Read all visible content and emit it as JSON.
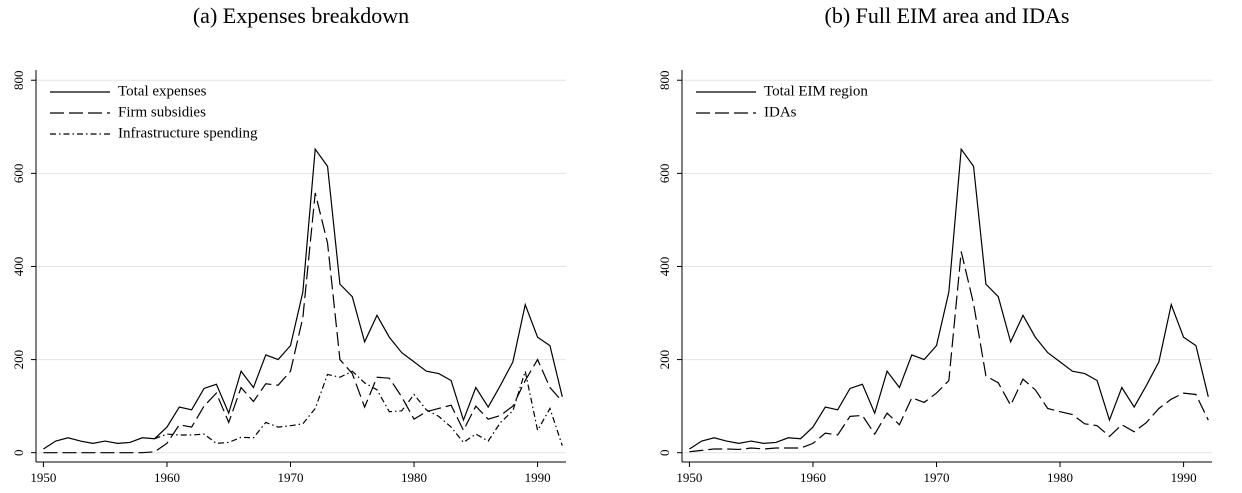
{
  "chart_data": [
    {
      "type": "line",
      "title": "(a) Expenses breakdown",
      "x": [
        1950,
        1951,
        1952,
        1953,
        1954,
        1955,
        1956,
        1957,
        1958,
        1959,
        1960,
        1961,
        1962,
        1963,
        1964,
        1965,
        1966,
        1967,
        1968,
        1969,
        1970,
        1971,
        1972,
        1973,
        1974,
        1975,
        1976,
        1977,
        1978,
        1979,
        1980,
        1981,
        1982,
        1983,
        1984,
        1985,
        1986,
        1987,
        1988,
        1989,
        1990,
        1991,
        1992
      ],
      "series": [
        {
          "name": "Total expenses",
          "color": "#000000",
          "dash": "solid",
          "values": [
            8,
            25,
            32,
            25,
            20,
            25,
            20,
            22,
            32,
            30,
            55,
            98,
            92,
            138,
            147,
            85,
            175,
            140,
            210,
            200,
            230,
            345,
            652,
            615,
            362,
            335,
            238,
            295,
            248,
            215,
            195,
            175,
            170,
            155,
            70,
            140,
            98,
            145,
            195,
            318,
            248,
            230,
            120
          ]
        },
        {
          "name": "Firm subsidies",
          "color": "#000000",
          "dash": "dash",
          "values": [
            0,
            0,
            0,
            0,
            0,
            0,
            0,
            0,
            0,
            2,
            20,
            60,
            55,
            100,
            128,
            65,
            140,
            110,
            148,
            145,
            175,
            290,
            558,
            450,
            200,
            170,
            98,
            162,
            160,
            120,
            72,
            88,
            95,
            102,
            48,
            100,
            72,
            80,
            100,
            155,
            200,
            140,
            110
          ]
        },
        {
          "name": "Infrastructure spending",
          "color": "#000000",
          "dash": "dashdot",
          "values": [
            null,
            null,
            null,
            null,
            null,
            null,
            null,
            null,
            null,
            30,
            40,
            38,
            38,
            40,
            20,
            22,
            33,
            32,
            65,
            55,
            58,
            62,
            95,
            168,
            162,
            175,
            150,
            135,
            88,
            90,
            125,
            92,
            78,
            55,
            22,
            40,
            25,
            65,
            90,
            175,
            48,
            95,
            15
          ]
        }
      ],
      "xlim": [
        1949.4,
        1992.3
      ],
      "xticks": [
        1950,
        1960,
        1970,
        1980,
        1990
      ],
      "ylim": [
        -20,
        822
      ],
      "yticks": [
        0,
        200,
        400,
        600,
        800
      ],
      "grid": true,
      "legend": "top-left"
    },
    {
      "type": "line",
      "title": "(b) Full EIM area and IDAs",
      "x": [
        1950,
        1951,
        1952,
        1953,
        1954,
        1955,
        1956,
        1957,
        1958,
        1959,
        1960,
        1961,
        1962,
        1963,
        1964,
        1965,
        1966,
        1967,
        1968,
        1969,
        1970,
        1971,
        1972,
        1973,
        1974,
        1975,
        1976,
        1977,
        1978,
        1979,
        1980,
        1981,
        1982,
        1983,
        1984,
        1985,
        1986,
        1987,
        1988,
        1989,
        1990,
        1991,
        1992
      ],
      "series": [
        {
          "name": "Total EIM region",
          "color": "#000000",
          "dash": "solid",
          "values": [
            8,
            25,
            32,
            25,
            20,
            25,
            20,
            22,
            32,
            30,
            55,
            98,
            92,
            138,
            147,
            85,
            175,
            140,
            210,
            200,
            230,
            345,
            652,
            615,
            362,
            335,
            238,
            295,
            248,
            215,
            195,
            175,
            170,
            155,
            70,
            140,
            98,
            145,
            195,
            318,
            248,
            230,
            120
          ]
        },
        {
          "name": "IDAs",
          "color": "#000000",
          "dash": "dash",
          "values": [
            2,
            5,
            8,
            8,
            7,
            10,
            8,
            10,
            10,
            10,
            20,
            42,
            38,
            78,
            80,
            40,
            85,
            60,
            118,
            108,
            128,
            155,
            432,
            320,
            165,
            150,
            102,
            158,
            135,
            95,
            88,
            82,
            62,
            58,
            35,
            60,
            45,
            65,
            95,
            115,
            128,
            125,
            70
          ]
        }
      ],
      "xlim": [
        1949.4,
        1992.3
      ],
      "xticks": [
        1950,
        1960,
        1970,
        1980,
        1990
      ],
      "ylim": [
        -20,
        822
      ],
      "yticks": [
        0,
        200,
        400,
        600,
        800
      ],
      "grid": true,
      "legend": "top-left"
    }
  ]
}
